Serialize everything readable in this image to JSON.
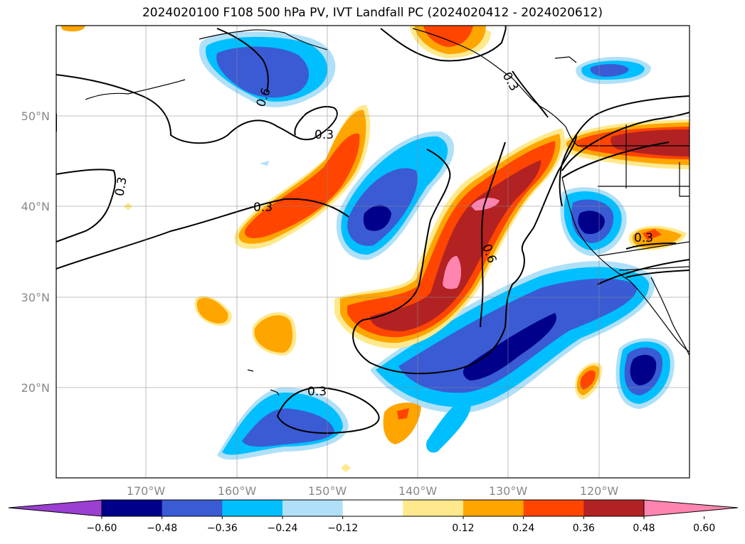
{
  "title": "2024020100 F108 500 hPa PV, IVT Landfall PC (2024020412 - 2024020612)",
  "map": {
    "lat_labels": [
      "50°N",
      "40°N",
      "30°N",
      "20°N"
    ],
    "lon_labels": [
      "170°W",
      "160°W",
      "150°W",
      "140°W",
      "130°W",
      "120°W"
    ],
    "contour_labels": [
      "0.3",
      "0.3",
      "0.3",
      "0.3",
      "0.6",
      "0.6",
      "0.3",
      "0.3"
    ]
  },
  "colorbar": {
    "ticks": [
      "−0.60",
      "−0.48",
      "−0.36",
      "−0.24",
      "−0.12",
      "0.12",
      "0.24",
      "0.36",
      "0.48",
      "0.60"
    ],
    "colors": [
      "#9a3fd1",
      "#00008b",
      "#3a5bd4",
      "#00bfff",
      "#b0e0f8",
      "#ffffff",
      "#ffe98c",
      "#ffa500",
      "#ff4500",
      "#b22222",
      "#ff85b0"
    ]
  }
}
